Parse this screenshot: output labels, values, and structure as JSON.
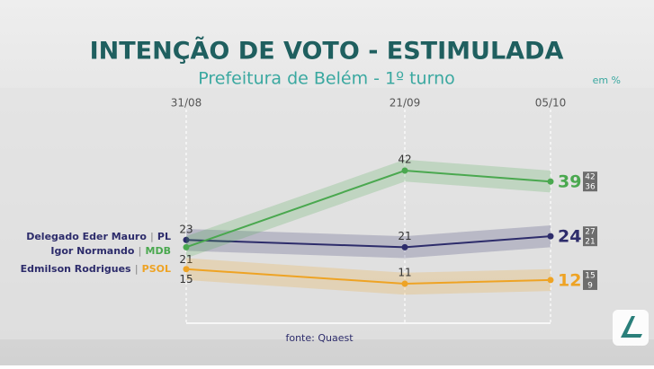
{
  "chart_data": {
    "type": "line",
    "title": "INTENÇÃO DE VOTO - ESTIMULADA",
    "subtitle": "Prefeitura de Belém - 1º turno",
    "unit_note": "em %",
    "source": "fonte: Quaest",
    "x": [
      "31/08",
      "21/09",
      "05/10"
    ],
    "series": [
      {
        "name": "Delegado Eder Mauro",
        "party": "PL",
        "color": "#2d2c6b",
        "values": [
          23,
          21,
          24
        ],
        "upper": 27,
        "lower": 21
      },
      {
        "name": "Igor Normando",
        "party": "MDB",
        "color": "#4aa84f",
        "values": [
          21,
          42,
          39
        ],
        "upper": 42,
        "lower": 36
      },
      {
        "name": "Edmilson Rodrigues",
        "party": "PSOL",
        "color": "#eea324",
        "values": [
          15,
          11,
          12
        ],
        "upper": 15,
        "lower": 9
      }
    ]
  }
}
